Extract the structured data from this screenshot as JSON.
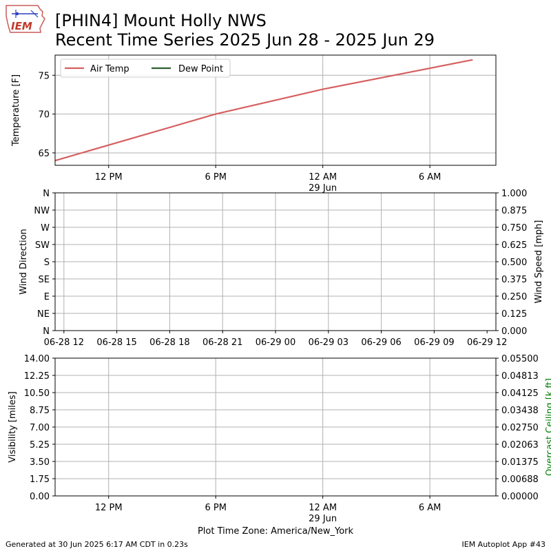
{
  "header": {
    "title_line1": "[PHIN4] Mount Holly NWS",
    "title_line2": "Recent Time Series 2025 Jun 28 - 2025 Jun 29",
    "logo_text": "IEM"
  },
  "footer": {
    "generated": "Generated at 30 Jun 2025 6:17 AM CDT in 0.23s",
    "app": "IEM Autoplot App #43",
    "timezone_label": "Plot Time Zone: America/New_York"
  },
  "colors": {
    "air_temp": "#d65f5f",
    "dew_point": "#2d5f2d",
    "grid": "#b0b0b0",
    "ceiling_label": "#008000"
  },
  "chart_data": [
    {
      "type": "line",
      "ylabel": "Temperature [F]",
      "ylim": [
        63.4,
        77.6
      ],
      "yticks": [
        65,
        70,
        75
      ],
      "xlim_hours": [
        0,
        24.7
      ],
      "xticks": [
        {
          "hour": 3.0,
          "label": "12 PM",
          "sub": ""
        },
        {
          "hour": 9.0,
          "label": "6 PM",
          "sub": ""
        },
        {
          "hour": 15.0,
          "label": "12 AM",
          "sub": "29 Jun"
        },
        {
          "hour": 21.0,
          "label": "6 AM",
          "sub": ""
        }
      ],
      "legend_position": "top-left",
      "grid": true,
      "series": [
        {
          "name": "Air Temp",
          "x_hours": [
            0,
            9.0,
            15.0,
            23.4
          ],
          "values": [
            64.0,
            70.0,
            73.2,
            77.0
          ]
        },
        {
          "name": "Dew Point",
          "x_hours": [],
          "values": []
        }
      ]
    },
    {
      "type": "line",
      "ylabel": "Wind Direction",
      "ylabel_right": "Wind Speed [mph]",
      "yticks_left": [
        "N",
        "NE",
        "E",
        "SE",
        "S",
        "SW",
        "W",
        "NW",
        "N"
      ],
      "yticks_right": [
        "0.000",
        "0.125",
        "0.250",
        "0.375",
        "0.500",
        "0.625",
        "0.750",
        "0.875",
        "1.000"
      ],
      "xlim_hours": [
        -0.5,
        24.5
      ],
      "xticks": [
        "06-28 12",
        "06-28 15",
        "06-28 18",
        "06-28 21",
        "06-29 00",
        "06-29 03",
        "06-29 06",
        "06-29 09",
        "06-29 12"
      ],
      "grid": true,
      "series": []
    },
    {
      "type": "line",
      "ylabel": "Visibility [miles]",
      "ylabel_right": "Overcast Ceiling [k ft]",
      "yticks_left": [
        "0.00",
        "1.75",
        "3.50",
        "5.25",
        "7.00",
        "8.75",
        "10.50",
        "12.25",
        "14.00"
      ],
      "yticks_right": [
        "0.00000",
        "0.00688",
        "0.01375",
        "0.02063",
        "0.02750",
        "0.03438",
        "0.04125",
        "0.04813",
        "0.05500"
      ],
      "xlim_hours": [
        0,
        24.7
      ],
      "xticks": [
        {
          "hour": 3.0,
          "label": "12 PM",
          "sub": ""
        },
        {
          "hour": 9.0,
          "label": "6 PM",
          "sub": ""
        },
        {
          "hour": 15.0,
          "label": "12 AM",
          "sub": "29 Jun"
        },
        {
          "hour": 21.0,
          "label": "6 AM",
          "sub": ""
        }
      ],
      "grid": true,
      "series": []
    }
  ]
}
